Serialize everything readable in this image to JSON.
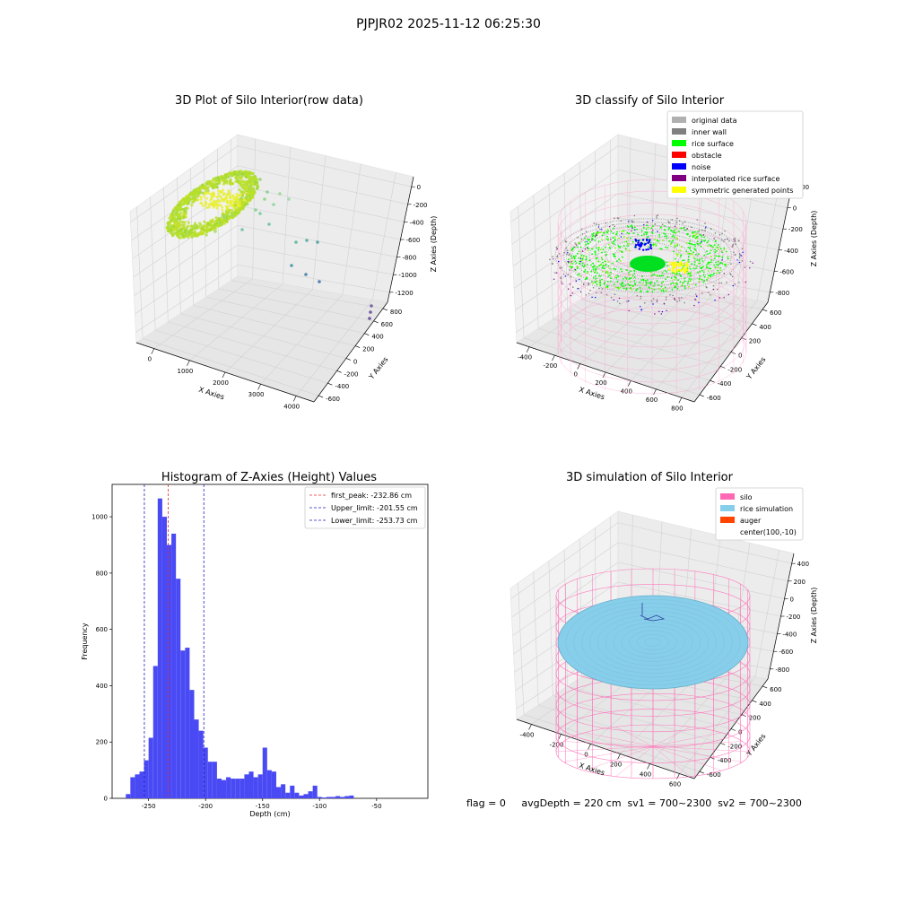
{
  "suptitle": "PJPJR02 2025-11-12 06:25:30",
  "footer": "flag = 0     avgDepth = 220 cm  sv1 = 700~2300  sv2 = 700~2300",
  "colors": {
    "hist_bar": "#4a4af5",
    "first_peak_line": "#e03030",
    "limit_line": "#2020c0",
    "silo": "#ff69b4",
    "rice_simulation": "#87ceeb",
    "auger": "#ff4500",
    "original_data": "#b0b0b0",
    "inner_wall": "#808080",
    "rice_surface": "#00ff00",
    "obstacle": "#ff0000",
    "noise": "#0000ff",
    "interpolated": "#800080",
    "symmetric": "#ffff00"
  },
  "chart_data": [
    {
      "type": "scatter",
      "title": "3D Plot of Silo Interior(row data)",
      "xlabel": "X Axies",
      "ylabel": "Y Axies",
      "zlabel": "Z Axies (Depth)",
      "xticks": [
        "0",
        "1000",
        "2000",
        "3000",
        "4000"
      ],
      "yticks": [
        "-600",
        "-400",
        "-200",
        "0",
        "200",
        "400",
        "600",
        "800"
      ],
      "zticks": [
        "0",
        "-200",
        "-400",
        "-600",
        "-800",
        "-1000",
        "-1200"
      ]
    },
    {
      "type": "scatter",
      "title": "3D classify of Silo Interior",
      "xlabel": "X Axies",
      "ylabel": "Y Axies",
      "zlabel": "Z Axies (Depth)",
      "xticks": [
        "-400",
        "-200",
        "0",
        "200",
        "400",
        "600",
        "800"
      ],
      "yticks": [
        "-600",
        "-400",
        "-200",
        "0",
        "200",
        "400",
        "600"
      ],
      "zticks": [
        "200",
        "0",
        "-200",
        "-400",
        "-600",
        "-800"
      ],
      "legend": [
        "original data",
        "inner wall",
        "rice surface",
        "obstacle",
        "noise",
        "interpolated rice surface",
        "symmetric generated points"
      ],
      "legend_loc": "top-right"
    },
    {
      "type": "bar",
      "title": "Histogram of Z-Axies (Height) Values",
      "xlabel": "Depth (cm)",
      "ylabel": "Frequency",
      "xlim": [
        -282,
        -5
      ],
      "ylim": [
        0,
        1115
      ],
      "xticks": [
        -250,
        -200,
        -150,
        -100,
        -50
      ],
      "yticks": [
        0,
        200,
        400,
        600,
        800,
        1000
      ],
      "bin_start": -270,
      "bin_width": 4,
      "values": [
        15,
        75,
        85,
        95,
        135,
        215,
        470,
        1065,
        1000,
        900,
        940,
        780,
        525,
        535,
        385,
        280,
        240,
        180,
        130,
        130,
        70,
        65,
        75,
        70,
        70,
        70,
        85,
        95,
        75,
        85,
        180,
        100,
        95,
        40,
        50,
        20,
        45,
        20,
        10,
        15,
        25,
        45,
        5,
        3,
        5,
        5,
        8,
        5,
        8,
        10
      ],
      "vlines": [
        {
          "label": "first_peak: -232.86 cm",
          "x": -232.86,
          "color": "red"
        },
        {
          "label": "Upper_limit: -201.55 cm",
          "x": -201.55,
          "color": "blue"
        },
        {
          "label": "Lower_limit: -253.73 cm",
          "x": -253.73,
          "color": "blue"
        }
      ],
      "legend_loc": "top-right"
    },
    {
      "type": "scatter",
      "title": "3D simulation of Silo Interior",
      "xlabel": "X Axies",
      "ylabel": "Y Axies",
      "zlabel": "Z Axies (Depth)",
      "xticks": [
        "-400",
        "-200",
        "0",
        "200",
        "400",
        "600"
      ],
      "yticks": [
        "-600",
        "-400",
        "-200",
        "0",
        "200",
        "400",
        "600"
      ],
      "zticks": [
        "400",
        "200",
        "0",
        "-200",
        "-400",
        "-600",
        "-800"
      ],
      "legend": [
        "silo",
        "rice simulation",
        "auger",
        "center(100,-10)"
      ],
      "legend_loc": "top-right"
    }
  ]
}
